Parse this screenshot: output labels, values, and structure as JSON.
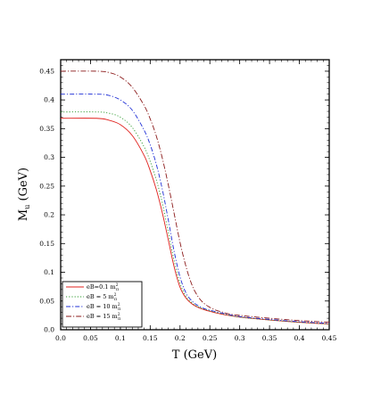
{
  "chart_data": {
    "type": "line",
    "xlabel": "T (GeV)",
    "ylabel": "M",
    "ylabel_sub": "u",
    "ylabel_unit": " (GeV)",
    "xlim": [
      0.0,
      0.45
    ],
    "ylim": [
      0.0,
      0.47
    ],
    "xticks": [
      0.0,
      0.05,
      0.1,
      0.15,
      0.2,
      0.25,
      0.3,
      0.35,
      0.4,
      0.45
    ],
    "xtick_labels": [
      "0.0",
      "0.05",
      "0.1",
      "0.15",
      "0.2",
      "0.25",
      "0.3",
      "0.35",
      "0.4",
      "0.45"
    ],
    "yticks": [
      0.0,
      0.05,
      0.1,
      0.15,
      0.2,
      0.25,
      0.3,
      0.35,
      0.4,
      0.45
    ],
    "ytick_labels": [
      "0.0",
      "0.05",
      "0.1",
      "0.15",
      "0.2",
      "0.25",
      "0.3",
      "0.35",
      "0.4",
      "0.45"
    ],
    "grid": false,
    "legend_position": "bottom-left",
    "series": [
      {
        "name": "eB=0.1 m",
        "name_sup": "2",
        "name_sub": "π",
        "color": "#e0201c",
        "dash": "",
        "x": [
          0.0,
          0.06,
          0.08,
          0.1,
          0.12,
          0.14,
          0.15,
          0.16,
          0.17,
          0.18,
          0.19,
          0.2,
          0.21,
          0.22,
          0.23,
          0.24,
          0.25,
          0.27,
          0.3,
          0.35,
          0.4,
          0.45
        ],
        "y": [
          0.368,
          0.368,
          0.365,
          0.357,
          0.338,
          0.303,
          0.277,
          0.245,
          0.205,
          0.158,
          0.11,
          0.074,
          0.055,
          0.045,
          0.039,
          0.035,
          0.032,
          0.027,
          0.022,
          0.017,
          0.013,
          0.01
        ]
      },
      {
        "name": "eB = 5 m",
        "name_sup": "2",
        "name_sub": "π",
        "color": "#2e9a2e",
        "dash": "1.2,2",
        "x": [
          0.0,
          0.06,
          0.08,
          0.1,
          0.12,
          0.14,
          0.15,
          0.16,
          0.17,
          0.18,
          0.19,
          0.2,
          0.21,
          0.22,
          0.23,
          0.24,
          0.25,
          0.27,
          0.3,
          0.35,
          0.4,
          0.45
        ],
        "y": [
          0.379,
          0.379,
          0.377,
          0.37,
          0.352,
          0.318,
          0.293,
          0.262,
          0.222,
          0.172,
          0.121,
          0.081,
          0.058,
          0.047,
          0.04,
          0.036,
          0.033,
          0.028,
          0.022,
          0.017,
          0.013,
          0.01
        ]
      },
      {
        "name": "eB = 10 m",
        "name_sup": "2",
        "name_sub": "π",
        "color": "#1f2fd6",
        "dash": "5,2,1.2,2",
        "x": [
          0.0,
          0.06,
          0.08,
          0.1,
          0.12,
          0.14,
          0.15,
          0.16,
          0.17,
          0.18,
          0.19,
          0.2,
          0.21,
          0.22,
          0.23,
          0.24,
          0.25,
          0.27,
          0.3,
          0.35,
          0.4,
          0.45
        ],
        "y": [
          0.41,
          0.41,
          0.408,
          0.4,
          0.382,
          0.347,
          0.322,
          0.289,
          0.246,
          0.193,
          0.137,
          0.092,
          0.064,
          0.05,
          0.042,
          0.037,
          0.034,
          0.029,
          0.023,
          0.018,
          0.014,
          0.011
        ]
      },
      {
        "name": "eB = 15 m",
        "name_sup": "2",
        "name_sub": "π",
        "color": "#8b1a1a",
        "dash": "6,2,1.2,2",
        "x": [
          0.0,
          0.06,
          0.08,
          0.1,
          0.12,
          0.14,
          0.15,
          0.16,
          0.17,
          0.18,
          0.19,
          0.2,
          0.21,
          0.22,
          0.23,
          0.24,
          0.25,
          0.26,
          0.27,
          0.28,
          0.3,
          0.35,
          0.4,
          0.45
        ],
        "y": [
          0.45,
          0.45,
          0.448,
          0.44,
          0.422,
          0.39,
          0.367,
          0.338,
          0.3,
          0.254,
          0.203,
          0.152,
          0.11,
          0.078,
          0.058,
          0.046,
          0.039,
          0.034,
          0.031,
          0.028,
          0.025,
          0.02,
          0.016,
          0.013
        ]
      }
    ]
  }
}
